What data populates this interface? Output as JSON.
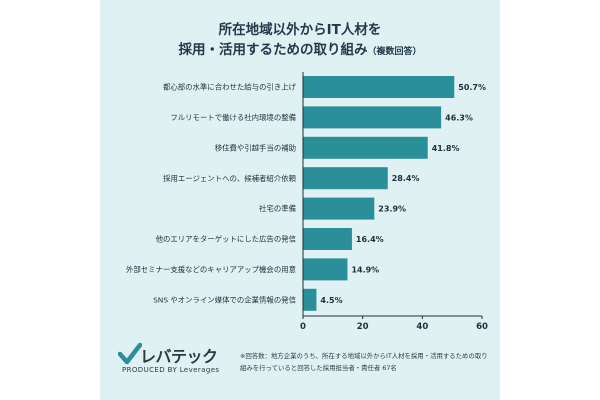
{
  "chart_data": {
    "type": "bar",
    "orientation": "horizontal",
    "title": "所在地域以外からIT人材を",
    "subtitle": "採用・活用するための取り組み",
    "title_note": "（複数回答）",
    "categories": [
      "都心部の水準に合わせた給与の引き上げ",
      "フルリモートで働ける社内環境の整備",
      "移住費や引越手当の補助",
      "採用エージェントへの、候補者紹介依頼",
      "社宅の準備",
      "他のエリアをターゲットにした広告の発信",
      "外部セミナー支援などのキャリアアップ機会の用意",
      "SNS やオンライン媒体での企業情報の発信"
    ],
    "values": [
      50.7,
      46.3,
      41.8,
      28.4,
      23.9,
      16.4,
      14.9,
      4.5
    ],
    "value_labels": [
      "50.7%",
      "46.3%",
      "41.8%",
      "28.4%",
      "23.9%",
      "16.4%",
      "14.9%",
      "4.5%"
    ],
    "xlim": [
      0,
      60
    ],
    "xticks": [
      "0",
      "20",
      "40",
      "60"
    ],
    "grid": false,
    "legend": "none",
    "bar_color": "#2a8f98",
    "axis_color": "#1f2f3a"
  },
  "brand": {
    "name": "レバテック",
    "tagline": "PRODUCED BY Leverages",
    "check_color": "#2a8f98"
  },
  "footnote": "※回答数：地方企業のうち、所在する地域以外からIT人材を採用・活用するための取り組みを行っていると回答した採用担当者・責任者 67名",
  "colors": {
    "panel": "#dff1f2",
    "text": "#243a4a"
  }
}
